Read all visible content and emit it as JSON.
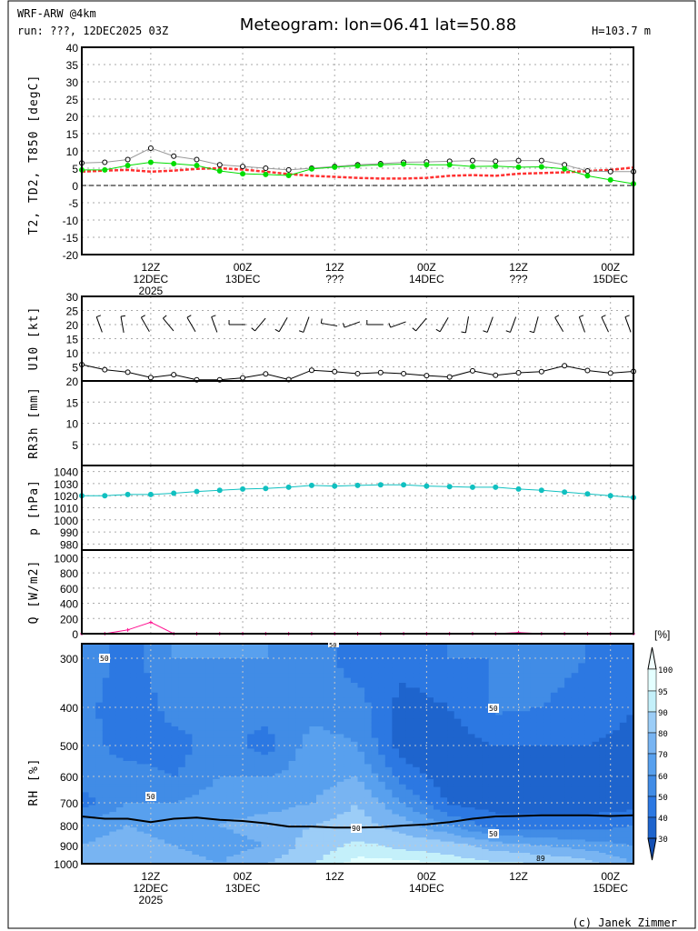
{
  "header": {
    "model": "WRF-ARW @4km",
    "run": "run: ???, 12DEC2025 03Z",
    "title": "Meteogram: lon=06.41 lat=50.88",
    "height": "H=103.7 m"
  },
  "footer": {
    "credit": "(c) Janek Zimmer"
  },
  "colors": {
    "t2": "#999999",
    "td2": "#00dd00",
    "t850": "#ff3030",
    "pressure": "#10c0c0",
    "q": "#ff1090",
    "frame": "#000000"
  },
  "time_axis": {
    "step_hours": 3,
    "start": "12DEC2025 03Z",
    "upper_labels": [
      {
        "index": 3,
        "lines": [
          "12Z",
          "12DEC",
          "2025"
        ]
      },
      {
        "index": 7,
        "lines": [
          "00Z",
          "13DEC"
        ]
      },
      {
        "index": 11,
        "lines": [
          "12Z",
          "???"
        ]
      },
      {
        "index": 15,
        "lines": [
          "00Z",
          "14DEC"
        ]
      },
      {
        "index": 19,
        "lines": [
          "12Z",
          "???"
        ]
      },
      {
        "index": 23,
        "lines": [
          "00Z",
          "15DEC"
        ]
      }
    ],
    "lower_labels": [
      {
        "index": 3,
        "lines": [
          "12Z",
          "12DEC",
          "2025"
        ]
      },
      {
        "index": 7,
        "lines": [
          "00Z",
          "13DEC"
        ]
      },
      {
        "index": 11,
        "lines": [
          "12Z"
        ]
      },
      {
        "index": 15,
        "lines": [
          "00Z",
          "14DEC"
        ]
      },
      {
        "index": 19,
        "lines": [
          "12Z"
        ]
      },
      {
        "index": 23,
        "lines": [
          "00Z",
          "15DEC"
        ]
      }
    ]
  },
  "chart_data": [
    {
      "id": "temp",
      "type": "line",
      "ylabel": "T2, TD2, T850 [degC]",
      "ylim": [
        -20,
        40
      ],
      "yticks": [
        -20,
        -15,
        -10,
        -5,
        0,
        5,
        10,
        15,
        20,
        25,
        30,
        35,
        40
      ],
      "zero_line": true,
      "series": [
        {
          "name": "T2",
          "values": [
            6.5,
            6.7,
            7.5,
            10.8,
            8.5,
            7.5,
            6,
            5.5,
            5,
            4.5,
            5,
            5.5,
            6,
            6.3,
            6.7,
            6.8,
            7,
            7.2,
            7,
            7.2,
            7.2,
            6,
            4.2,
            4,
            4
          ]
        },
        {
          "name": "TD2",
          "values": [
            4.5,
            4.5,
            5.8,
            6.7,
            6.3,
            5.8,
            4.2,
            3.4,
            3.2,
            2.9,
            4.8,
            5.3,
            5.7,
            6,
            6.2,
            6,
            6,
            5.5,
            5.6,
            5.3,
            5.4,
            4.8,
            2.8,
            1.6,
            0.5
          ]
        },
        {
          "name": "T850",
          "values": [
            4,
            4.3,
            4.5,
            4,
            4.3,
            4.8,
            5,
            4.6,
            4,
            3.3,
            2.8,
            2.5,
            2.2,
            2,
            2,
            2.2,
            2.8,
            3,
            2.8,
            3.4,
            3.6,
            3.8,
            4.2,
            4.5,
            5.2
          ]
        }
      ]
    },
    {
      "id": "wind",
      "type": "line",
      "ylabel": "U10 [kt]",
      "ylim": [
        0,
        30
      ],
      "yticks": [
        5,
        10,
        15,
        20,
        25,
        30
      ],
      "series": [
        {
          "name": "U10",
          "values": [
            5.8,
            4,
            3.1,
            1.2,
            2.2,
            0.4,
            0.4,
            1.1,
            2.5,
            0.5,
            3.8,
            3.3,
            2.6,
            3,
            2.6,
            1.9,
            1.4,
            3.6,
            2,
            2.9,
            3.3,
            5.4,
            3.7,
            2.8,
            3.4
          ]
        }
      ],
      "barb_direction_deg": [
        320,
        340,
        350,
        330,
        320,
        330,
        340,
        270,
        220,
        210,
        200,
        280,
        250,
        270,
        250,
        220,
        210,
        190,
        200,
        200,
        195,
        330,
        340,
        335,
        340
      ]
    },
    {
      "id": "rain",
      "type": "bar",
      "ylabel": "RR3h [mm]",
      "ylim": [
        0,
        20
      ],
      "yticks": [
        5,
        10,
        15,
        20
      ],
      "series": [
        {
          "name": "RR3h",
          "values": [
            0,
            0,
            0,
            0,
            0,
            0,
            0,
            0,
            0,
            0,
            0,
            0,
            0,
            0,
            0,
            0,
            0,
            0,
            0,
            0,
            0,
            0,
            0,
            0,
            0
          ]
        }
      ]
    },
    {
      "id": "pres",
      "type": "line",
      "ylabel": "p [hPa]",
      "ylim": [
        975,
        1045
      ],
      "yticks": [
        980,
        990,
        1000,
        1010,
        1020,
        1030,
        1040
      ],
      "series": [
        {
          "name": "p",
          "values": [
            1020,
            1020,
            1021,
            1021,
            1022,
            1023.5,
            1024.5,
            1025.5,
            1026,
            1027,
            1028.5,
            1028,
            1028.5,
            1029,
            1029,
            1028,
            1027.5,
            1027,
            1027,
            1025.5,
            1024.5,
            1023,
            1021.5,
            1020,
            1018.5
          ]
        }
      ]
    },
    {
      "id": "rad",
      "type": "line",
      "ylabel": "Q [W/m2]",
      "ylim": [
        0,
        1100
      ],
      "yticks": [
        0,
        200,
        400,
        600,
        800,
        1000
      ],
      "series": [
        {
          "name": "Q",
          "values": [
            0,
            0,
            50,
            150,
            0,
            0,
            0,
            0,
            0,
            0,
            0,
            0,
            0,
            0,
            0,
            0,
            0,
            0,
            0,
            15,
            0,
            0,
            0,
            0,
            0
          ]
        }
      ]
    },
    {
      "id": "rh",
      "type": "heatmap",
      "ylabel": "RH [%]",
      "unit_label": "[%]",
      "yticks": [
        300,
        400,
        500,
        600,
        700,
        800,
        900,
        1000
      ],
      "levels_hpa": [
        300,
        400,
        500,
        600,
        700,
        800,
        900,
        1000
      ],
      "time_indices": [
        0,
        2,
        4,
        6,
        8,
        10,
        12,
        14,
        16,
        18,
        20,
        22,
        24
      ],
      "values": [
        [
          60,
          55,
          55,
          55,
          45,
          65,
          70,
          70
        ],
        [
          45,
          40,
          45,
          55,
          60,
          70,
          75,
          75
        ],
        [
          60,
          55,
          45,
          50,
          60,
          65,
          70,
          75
        ],
        [
          60,
          55,
          55,
          60,
          65,
          70,
          65,
          70
        ],
        [
          60,
          55,
          45,
          60,
          65,
          75,
          70,
          80
        ],
        [
          55,
          55,
          65,
          65,
          70,
          80,
          85,
          90
        ],
        [
          45,
          55,
          60,
          70,
          80,
          85,
          92,
          97
        ],
        [
          45,
          35,
          35,
          45,
          60,
          75,
          88,
          97
        ],
        [
          50,
          40,
          35,
          35,
          38,
          60,
          85,
          95
        ],
        [
          50,
          52,
          40,
          35,
          35,
          45,
          75,
          92
        ],
        [
          55,
          50,
          40,
          35,
          35,
          45,
          70,
          90
        ],
        [
          50,
          45,
          40,
          35,
          35,
          45,
          65,
          85
        ],
        [
          40,
          40,
          38,
          35,
          35,
          50,
          60,
          70
        ]
      ],
      "line_hpa": [
        760,
        770,
        770,
        785,
        770,
        765,
        775,
        780,
        790,
        805,
        805,
        810,
        810,
        808,
        800,
        795,
        785,
        770,
        760,
        758,
        755,
        755,
        755,
        758,
        755
      ],
      "contour_labels": [
        "50",
        "50",
        "50",
        "50",
        "50",
        "90",
        "89"
      ],
      "colorbar": {
        "levels": [
          30,
          40,
          50,
          60,
          70,
          80,
          90,
          95,
          100
        ],
        "labels": [
          "30",
          "40",
          "50",
          "60",
          "70",
          "80",
          "90",
          "95",
          "100"
        ]
      }
    }
  ]
}
